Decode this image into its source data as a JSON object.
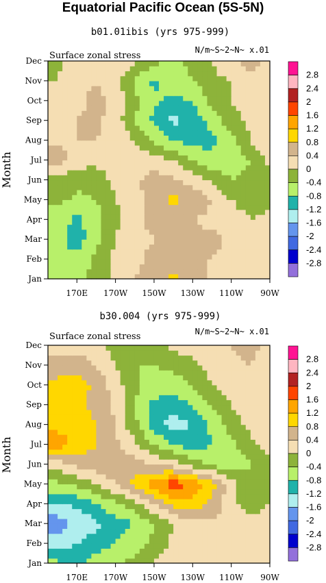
{
  "figure_title": "Equatorial Pacific Ocean (5S-5N)",
  "chart_data": [
    {
      "type": "heatmap",
      "title": "b01.01ibis (yrs 975-999)",
      "left_label": "Surface zonal stress",
      "right_label": "N/m~S~2~N~ x.01",
      "ylabel": "Month",
      "xticks": [
        "170E",
        "170W",
        "150W",
        "130W",
        "110W",
        "90W"
      ],
      "yticks": [
        "Jan",
        "Feb",
        "Mar",
        "Apr",
        "May",
        "Jun",
        "Jul",
        "Aug",
        "Sep",
        "Oct",
        "Nov",
        "Dec"
      ],
      "levels": [
        "2.8",
        "2.4",
        "2",
        "1.6",
        "1.2",
        "0.8",
        "0.4",
        "0",
        "-0.4",
        "-0.8",
        "-1.2",
        "-1.6",
        "-2",
        "-2.4",
        "-2.8"
      ],
      "colors": [
        "#FF1493",
        "#FFB6C1",
        "#B22222",
        "#FF4500",
        "#FFA500",
        "#FFD700",
        "#D2B48C",
        "#F5DEB3",
        "#8DB33A",
        "#B8F06A",
        "#20B2AA",
        "#AFEEEE",
        "#6495ED",
        "#4169E1",
        "#0000CD",
        "#9370DB"
      ],
      "x": [
        160,
        170,
        180,
        190,
        200,
        210,
        220,
        230,
        240,
        250,
        260,
        270
      ],
      "z": [
        [
          -0.5,
          -0.6,
          -0.2,
          0.1,
          0.4,
          0.7,
          0.9,
          0.6,
          0.3,
          0.2,
          0.1,
          0.1
        ],
        [
          -0.6,
          -0.7,
          -0.3,
          0.1,
          0.3,
          0.5,
          0.6,
          0.4,
          0.4,
          0.3,
          0.2,
          0.2
        ],
        [
          -0.7,
          -1.0,
          -0.5,
          0.0,
          0.3,
          0.4,
          0.4,
          0.5,
          0.5,
          0.3,
          0.1,
          0.2
        ],
        [
          -0.6,
          -0.9,
          -0.6,
          -0.1,
          0.3,
          0.5,
          0.5,
          0.4,
          0.3,
          0.2,
          0.0,
          0.1
        ],
        [
          -0.3,
          -0.5,
          -0.4,
          0.0,
          0.2,
          0.7,
          0.9,
          0.7,
          0.4,
          0.0,
          -0.2,
          -0.1
        ],
        [
          -0.1,
          -0.3,
          -0.2,
          0.1,
          0.3,
          0.6,
          0.5,
          0.2,
          -0.1,
          -0.4,
          -0.3,
          -0.1
        ],
        [
          0.6,
          0.2,
          0.1,
          0.2,
          0.3,
          0.2,
          0.0,
          -0.4,
          -0.7,
          -0.6,
          -0.4,
          0.1
        ],
        [
          0.3,
          0.4,
          0.4,
          0.3,
          0.0,
          -0.5,
          -0.8,
          -1.0,
          -0.9,
          -0.6,
          0.0,
          0.4
        ],
        [
          0.2,
          0.4,
          0.5,
          0.2,
          -0.4,
          -0.9,
          -1.3,
          -1.1,
          -0.6,
          -0.2,
          0.1,
          0.3
        ],
        [
          0.2,
          0.3,
          0.5,
          0.3,
          -0.3,
          -0.7,
          -0.9,
          -0.8,
          -0.3,
          0.0,
          0.2,
          0.3
        ],
        [
          0.0,
          0.3,
          0.4,
          0.1,
          -0.5,
          -0.9,
          -0.6,
          -0.4,
          -0.1,
          0.0,
          0.3,
          0.1
        ],
        [
          -0.1,
          0.2,
          0.4,
          0.3,
          0.1,
          -0.3,
          -0.5,
          -0.3,
          0.0,
          0.3,
          0.6,
          0.2
        ]
      ]
    },
    {
      "type": "heatmap",
      "title": "b30.004 (yrs 975-999)",
      "left_label": "Surface zonal stress",
      "right_label": "N/m~S~2~N~ x.01",
      "ylabel": "Month",
      "xticks": [
        "170E",
        "170W",
        "150W",
        "130W",
        "110W",
        "90W"
      ],
      "yticks": [
        "Jan",
        "Feb",
        "Mar",
        "Apr",
        "May",
        "Jun",
        "Jul",
        "Aug",
        "Sep",
        "Oct",
        "Nov",
        "Dec"
      ],
      "levels": [
        "2.8",
        "2.4",
        "2",
        "1.6",
        "1.2",
        "0.8",
        "0.4",
        "0",
        "-0.4",
        "-0.8",
        "-1.2",
        "-1.6",
        "-2",
        "-2.4",
        "-2.8"
      ],
      "colors": [
        "#FF1493",
        "#FFB6C1",
        "#B22222",
        "#FF4500",
        "#FFA500",
        "#FFD700",
        "#D2B48C",
        "#F5DEB3",
        "#8DB33A",
        "#B8F06A",
        "#20B2AA",
        "#AFEEEE",
        "#6495ED",
        "#4169E1",
        "#0000CD",
        "#9370DB"
      ],
      "x": [
        160,
        170,
        180,
        190,
        200,
        210,
        220,
        230,
        240,
        250,
        260,
        270
      ],
      "z": [
        [
          -0.7,
          -0.9,
          -0.6,
          -0.4,
          -0.3,
          0.0,
          0.3,
          0.3,
          0.3,
          0.2,
          0.1,
          0.1
        ],
        [
          -1.4,
          -1.2,
          -1.0,
          -0.8,
          -0.6,
          -0.3,
          0.1,
          0.3,
          0.3,
          0.2,
          0.1,
          0.2
        ],
        [
          -1.8,
          -1.5,
          -1.3,
          -1.0,
          -0.8,
          -0.4,
          0.0,
          0.2,
          0.3,
          0.3,
          0.2,
          0.2
        ],
        [
          -1.3,
          -1.1,
          -0.8,
          -0.5,
          -0.2,
          0.4,
          0.9,
          1.1,
          0.7,
          0.1,
          -0.2,
          0.0
        ],
        [
          -0.5,
          -0.3,
          0.0,
          0.4,
          0.9,
          1.4,
          1.9,
          1.5,
          1.0,
          0.2,
          -0.4,
          -0.2
        ],
        [
          0.2,
          0.5,
          0.6,
          0.7,
          0.6,
          0.4,
          0.2,
          -0.2,
          -0.5,
          -0.7,
          -0.4,
          -0.1
        ],
        [
          1.4,
          1.1,
          0.8,
          0.5,
          0.1,
          -0.4,
          -0.8,
          -1.0,
          -0.8,
          -0.5,
          -0.1,
          0.2
        ],
        [
          1.1,
          1.0,
          0.8,
          0.4,
          -0.3,
          -1.0,
          -1.4,
          -1.2,
          -0.7,
          -0.2,
          0.1,
          0.3
        ],
        [
          0.9,
          0.9,
          0.7,
          0.3,
          -0.4,
          -0.9,
          -1.0,
          -0.8,
          -0.4,
          0.0,
          0.3,
          0.2
        ],
        [
          0.9,
          1.0,
          0.7,
          0.2,
          -0.3,
          -0.6,
          -0.6,
          -0.4,
          0.0,
          0.2,
          0.3,
          0.1
        ],
        [
          0.6,
          0.7,
          0.4,
          0.0,
          -0.4,
          -0.4,
          -0.3,
          -0.1,
          0.2,
          0.3,
          0.4,
          0.1
        ],
        [
          0.1,
          0.2,
          0.1,
          -0.2,
          -0.3,
          -0.1,
          0.1,
          0.2,
          0.3,
          0.4,
          0.6,
          0.2
        ]
      ]
    }
  ]
}
